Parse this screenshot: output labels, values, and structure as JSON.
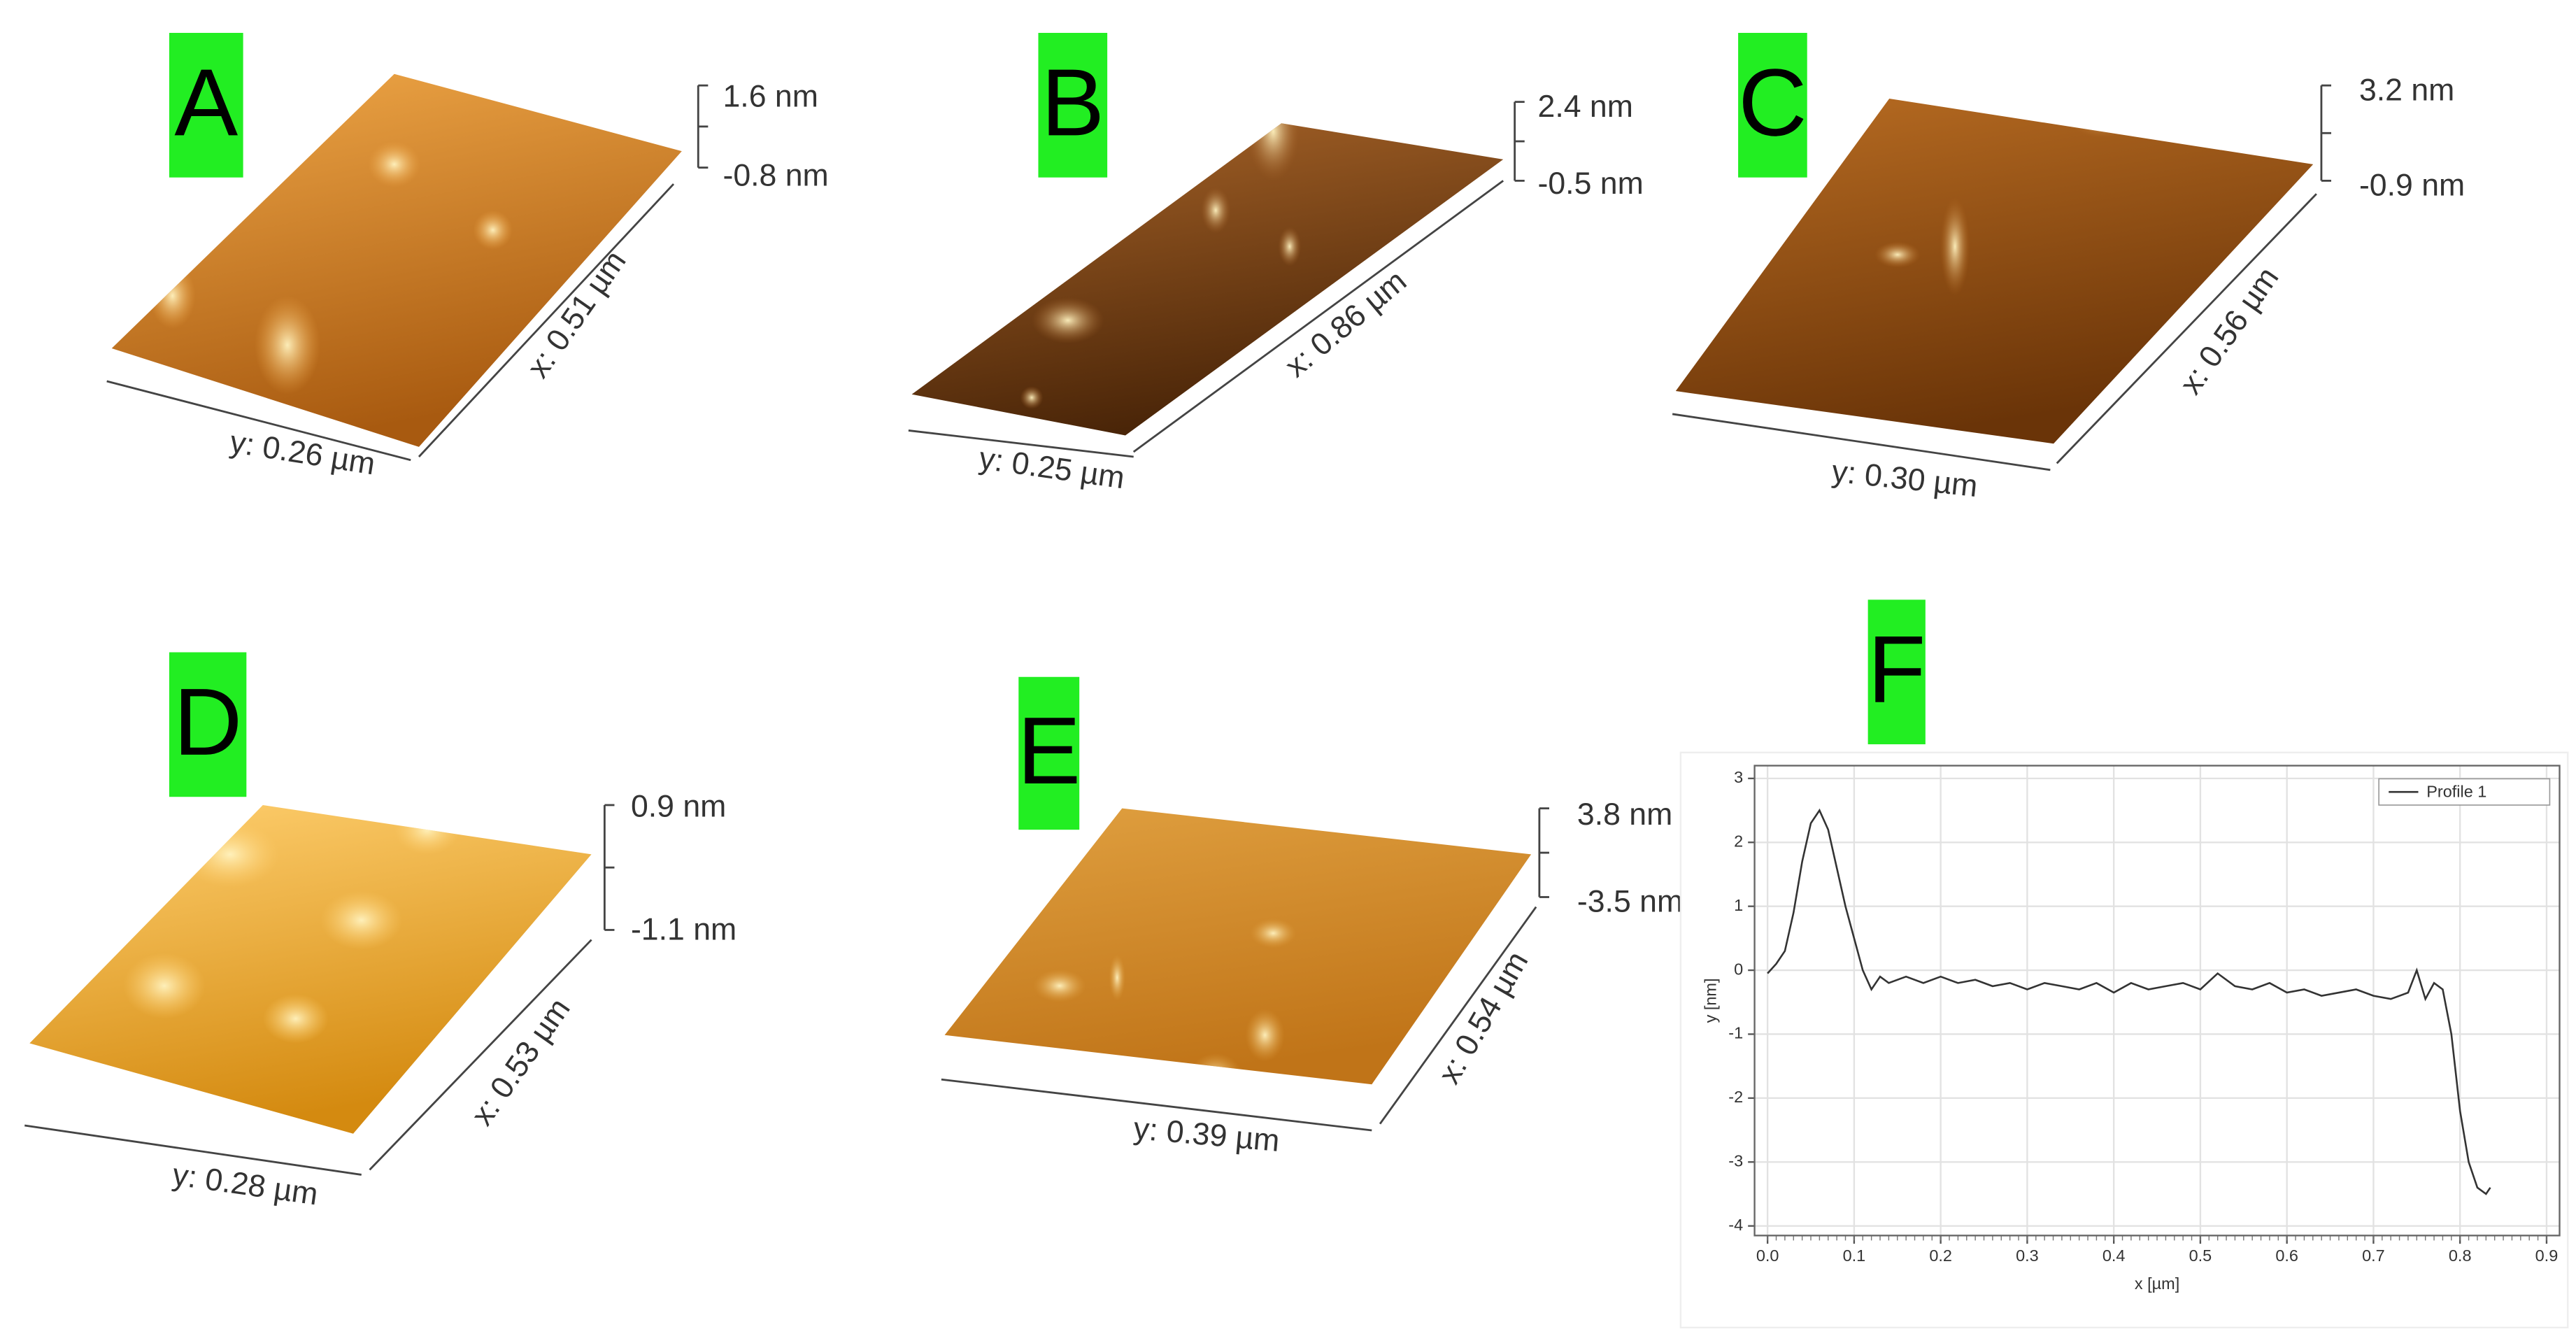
{
  "panels": [
    {
      "label": "A",
      "z_max": "1.6 nm",
      "z_min": "-0.8 nm",
      "x_size": "x: 0.51 µm",
      "y_size": "y: 0.26 µm"
    },
    {
      "label": "B",
      "z_max": "2.4 nm",
      "z_min": "-0.5 nm",
      "x_size": "x: 0.86 µm",
      "y_size": "y: 0.25 µm"
    },
    {
      "label": "C",
      "z_max": "3.2 nm",
      "z_min": "-0.9 nm",
      "x_size": "x: 0.56 µm",
      "y_size": "y: 0.30 µm"
    },
    {
      "label": "D",
      "z_max": "0.9 nm",
      "z_min": "-1.1 nm",
      "x_size": "x: 0.53 µm",
      "y_size": "y: 0.28 µm"
    },
    {
      "label": "E",
      "z_max": "3.8 nm",
      "z_min": "-3.5 nm",
      "x_size": "x: 0.54 µm",
      "y_size": "y: 0.39 µm"
    }
  ],
  "f_label": "F",
  "chart_data": {
    "type": "line",
    "xlabel": "x [µm]",
    "ylabel": "y [nm]",
    "x": [
      0,
      0.01,
      0.02,
      0.03,
      0.04,
      0.05,
      0.06,
      0.07,
      0.08,
      0.09,
      0.1,
      0.11,
      0.12,
      0.13,
      0.14,
      0.16,
      0.18,
      0.2,
      0.22,
      0.24,
      0.26,
      0.28,
      0.3,
      0.32,
      0.34,
      0.36,
      0.38,
      0.4,
      0.42,
      0.44,
      0.46,
      0.48,
      0.5,
      0.52,
      0.54,
      0.56,
      0.58,
      0.6,
      0.62,
      0.64,
      0.66,
      0.68,
      0.7,
      0.72,
      0.74,
      0.75,
      0.76,
      0.77,
      0.78,
      0.79,
      0.8,
      0.81,
      0.82,
      0.83,
      0.835
    ],
    "series": [
      {
        "name": "Profile 1",
        "color": "#333333",
        "values": [
          -0.05,
          0.1,
          0.3,
          0.9,
          1.7,
          2.3,
          2.5,
          2.2,
          1.6,
          1.0,
          0.5,
          0.0,
          -0.3,
          -0.1,
          -0.2,
          -0.1,
          -0.2,
          -0.1,
          -0.2,
          -0.15,
          -0.25,
          -0.2,
          -0.3,
          -0.2,
          -0.25,
          -0.3,
          -0.2,
          -0.35,
          -0.2,
          -0.3,
          -0.25,
          -0.2,
          -0.3,
          -0.05,
          -0.25,
          -0.3,
          -0.2,
          -0.35,
          -0.3,
          -0.4,
          -0.35,
          -0.3,
          -0.4,
          -0.45,
          -0.35,
          0.0,
          -0.45,
          -0.2,
          -0.3,
          -1.0,
          -2.2,
          -3.0,
          -3.4,
          -3.5,
          -3.4
        ]
      }
    ],
    "xlim": [
      -0.015,
      0.915
    ],
    "ylim": [
      -4.15,
      3.2
    ],
    "xticks": [
      {
        "value": 0,
        "label": "0.0"
      },
      0.1,
      0.2,
      0.3,
      0.4,
      0.5,
      0.6,
      0.7,
      0.8,
      0.9
    ],
    "yticks": [
      -4,
      -3,
      -2,
      -1,
      0,
      1,
      2,
      3
    ],
    "grid": true,
    "legend": "upper right"
  }
}
